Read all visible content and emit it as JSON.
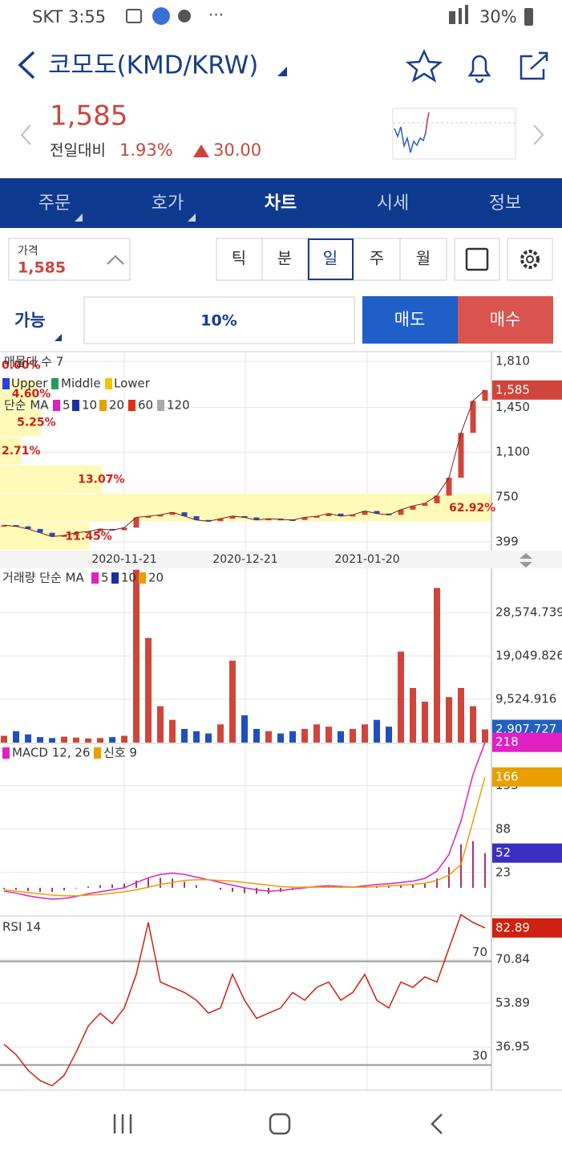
{
  "status_bar": {
    "carrier_time": "SKT 3:55",
    "battery": "30%"
  },
  "header": {
    "title": "코모도(KMD/KRW)"
  },
  "quote": {
    "price": "1,585",
    "change_label": "전일대비",
    "change_pct": "1.93%",
    "change_abs": "30.00"
  },
  "tabs": [
    "주문",
    "호가",
    "차트",
    "시세",
    "정보"
  ],
  "price_box": {
    "label": "가격",
    "value": "1,585"
  },
  "periods": [
    "틱",
    "분",
    "일",
    "주",
    "월"
  ],
  "order_row": {
    "available": "가능",
    "ratio": "10%",
    "sell": "매도",
    "buy": "매수"
  },
  "x_labels": [
    "2020-11-21",
    "2020-12-21",
    "2021-01-20"
  ],
  "chart_data": [
    {
      "type": "line",
      "title": "매물대 수 7",
      "band_legend": [
        "Upper",
        "Middle",
        "Lower"
      ],
      "ma_legend": {
        "label": "단순 MA",
        "periods": [
          "5",
          "10",
          "20",
          "60",
          "120"
        ]
      },
      "values": [
        530,
        520,
        500,
        470,
        440,
        450,
        470,
        480,
        500,
        490,
        510,
        590,
        600,
        610,
        630,
        600,
        570,
        560,
        580,
        600,
        590,
        570,
        580,
        575,
        570,
        590,
        600,
        620,
        600,
        610,
        640,
        620,
        610,
        650,
        680,
        700,
        760,
        900,
        1250,
        1500,
        1585
      ],
      "last_label": "1,585",
      "up_color": "#d0453b",
      "down_color": "#1f4fc0",
      "ylim": [
        330,
        1885
      ],
      "yticks": [
        399,
        750,
        {
          "value": 1100,
          "label": "1,100"
        },
        {
          "value": 1450,
          "label": "1,450"
        },
        {
          "value": 1810,
          "label": "1,810"
        }
      ],
      "profile": {
        "values": [
          11.45,
          62.92,
          13.07,
          2.71,
          5.25,
          4.6,
          0
        ],
        "value_labels": [
          "11.45%",
          "62.92%",
          "13.07%",
          "2.71%",
          "5.25%",
          "4.60%",
          "0.00%"
        ],
        "xlim": [
          0,
          63
        ],
        "color": "#fffab8"
      }
    },
    {
      "type": "bar",
      "title": "거래량 단순 MA",
      "ma_legend": [
        "5",
        "10",
        "20"
      ],
      "values": [
        1500,
        2500,
        1800,
        1200,
        1000,
        1300,
        1100,
        900,
        1000,
        1200,
        1500,
        38000,
        23000,
        8000,
        5000,
        3000,
        2500,
        2000,
        4000,
        18000,
        6000,
        3000,
        2500,
        2000,
        2500,
        3000,
        4000,
        3500,
        2500,
        3000,
        4000,
        5000,
        3500,
        20000,
        12000,
        9000,
        34000,
        10000,
        12000,
        8000,
        2907.727
      ],
      "last_label": "2,907.727",
      "ylim": [
        0,
        38300
      ],
      "yticks": [
        {
          "value": 9524.916,
          "label": "9,524.916"
        },
        {
          "value": 19049.826,
          "label": "19,049.826"
        },
        {
          "value": 28574.739,
          "label": "28,574.739"
        }
      ]
    },
    {
      "type": "line",
      "series": [
        {
          "name": "MACD 12, 26",
          "color": "#e020c0",
          "values": [
            -5,
            -8,
            -12,
            -15,
            -17,
            -16,
            -13,
            -9,
            -6,
            -3,
            0,
            8,
            15,
            20,
            22,
            20,
            16,
            12,
            8,
            4,
            0,
            -3,
            -5,
            -4,
            -2,
            0,
            2,
            3,
            2,
            1,
            3,
            5,
            6,
            8,
            10,
            14,
            25,
            50,
            100,
            170,
            218
          ]
        },
        {
          "name": "신호 9",
          "color": "#e8a000",
          "values": [
            -3,
            -5,
            -7,
            -9,
            -11,
            -12,
            -12,
            -11,
            -10,
            -8,
            -6,
            -3,
            1,
            5,
            8,
            11,
            12,
            12,
            11,
            10,
            8,
            6,
            4,
            2,
            1,
            1,
            1,
            1,
            1,
            1,
            1,
            2,
            3,
            4,
            5,
            7,
            11,
            19,
            35,
            100,
            166
          ]
        }
      ],
      "histogram": {
        "color": "#b0306a",
        "values": [
          -2,
          -3,
          -5,
          -6,
          -6,
          -4,
          -1,
          2,
          4,
          5,
          6,
          11,
          14,
          15,
          14,
          9,
          4,
          0,
          -3,
          -6,
          -8,
          -9,
          -9,
          -6,
          -3,
          -1,
          1,
          2,
          1,
          0,
          2,
          3,
          3,
          4,
          5,
          7,
          14,
          31,
          65,
          70,
          52
        ]
      },
      "ylim": [
        -41,
        214
      ],
      "yticks": [
        23,
        88,
        153
      ]
    },
    {
      "type": "line",
      "title": "RSI 14",
      "color": "#d02010",
      "values": [
        38,
        34,
        28,
        24,
        22,
        26,
        35,
        45,
        50,
        46,
        52,
        65,
        85,
        62,
        60,
        58,
        55,
        50,
        52,
        65,
        55,
        48,
        50,
        52,
        58,
        55,
        60,
        62,
        55,
        58,
        65,
        55,
        52,
        62,
        60,
        64,
        62,
        75,
        88,
        85,
        82.89
      ],
      "levels": [
        30,
        70
      ],
      "ylim": [
        20.3,
        87.2
      ],
      "yticks": [
        36.95,
        53.89,
        70.84
      ]
    }
  ]
}
